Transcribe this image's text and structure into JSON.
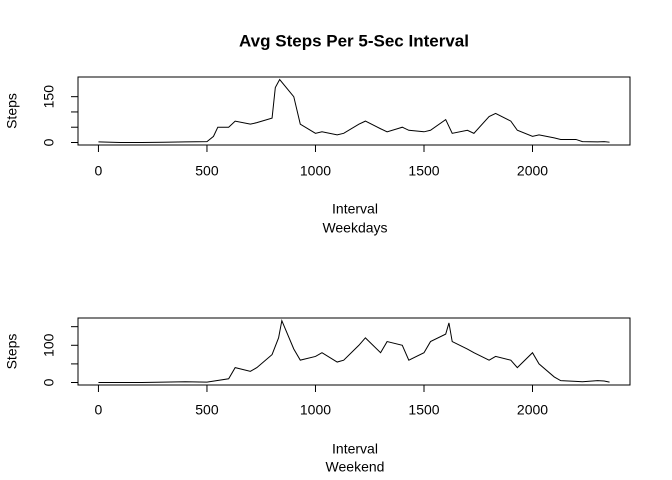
{
  "chart_data": [
    {
      "type": "line",
      "title": "Avg Steps Per 5-Sec Interval",
      "xlabel": "Interval",
      "subtitle": "Weekdays",
      "ylabel": "Steps",
      "x": [
        0,
        100,
        200,
        300,
        400,
        500,
        530,
        550,
        600,
        630,
        700,
        730,
        800,
        815,
        835,
        900,
        930,
        1000,
        1030,
        1100,
        1130,
        1200,
        1230,
        1300,
        1330,
        1400,
        1430,
        1500,
        1530,
        1600,
        1630,
        1700,
        1730,
        1800,
        1830,
        1900,
        1930,
        2000,
        2030,
        2100,
        2130,
        2200,
        2230,
        2300,
        2330,
        2355
      ],
      "series": [
        {
          "name": "Weekdays",
          "color": "#000000",
          "values": [
            2,
            0,
            0,
            1,
            2,
            3,
            20,
            50,
            50,
            70,
            60,
            65,
            80,
            180,
            206,
            150,
            60,
            30,
            35,
            25,
            30,
            60,
            70,
            45,
            35,
            50,
            40,
            35,
            40,
            75,
            30,
            40,
            30,
            85,
            95,
            70,
            40,
            20,
            25,
            15,
            10,
            10,
            3,
            2,
            3,
            1
          ]
        }
      ],
      "xlim": [
        -94.2,
        2449.2
      ],
      "xticks": [
        0,
        500,
        1000,
        1500,
        2000
      ],
      "ylim": [
        -8.2,
        214.4
      ],
      "yticks": [
        0,
        150
      ],
      "minor_yticks": [
        50,
        100
      ]
    },
    {
      "type": "line",
      "xlabel": "Interval",
      "subtitle": "Weekend",
      "ylabel": "Steps",
      "x": [
        0,
        100,
        200,
        300,
        400,
        500,
        600,
        630,
        700,
        730,
        800,
        830,
        845,
        900,
        930,
        1000,
        1030,
        1100,
        1130,
        1200,
        1230,
        1300,
        1330,
        1400,
        1430,
        1500,
        1530,
        1600,
        1615,
        1630,
        1700,
        1730,
        1800,
        1830,
        1900,
        1930,
        2000,
        2030,
        2100,
        2130,
        2200,
        2230,
        2300,
        2330,
        2355
      ],
      "series": [
        {
          "name": "Weekend",
          "color": "#000000",
          "values": [
            0,
            0,
            0,
            1,
            2,
            1,
            10,
            40,
            30,
            40,
            75,
            120,
            166,
            90,
            60,
            70,
            80,
            55,
            60,
            100,
            120,
            80,
            110,
            100,
            60,
            80,
            110,
            130,
            160,
            110,
            90,
            80,
            60,
            70,
            60,
            40,
            80,
            50,
            15,
            5,
            3,
            2,
            5,
            4,
            1
          ]
        }
      ],
      "xlim": [
        -94.2,
        2449.2
      ],
      "xticks": [
        0,
        500,
        1000,
        1500,
        2000
      ],
      "ylim": [
        -6.7,
        173.3
      ],
      "yticks": [
        0,
        100
      ],
      "minor_yticks": [
        50,
        150
      ]
    }
  ]
}
